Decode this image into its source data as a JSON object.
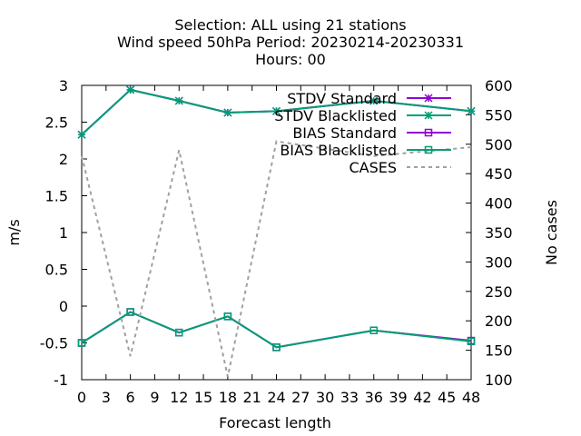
{
  "chart_data": {
    "type": "line",
    "title_lines": [
      "Selection: ALL using    21 stations",
      "Wind speed 50hPa   Period: 20230214-20230331",
      "Hours:  00"
    ],
    "xlabel": "Forecast length",
    "ylabel": "m/s",
    "y2label": "No cases",
    "x_ticks": [
      "0",
      "3",
      "6",
      "9",
      "12",
      "15",
      "18",
      "21",
      "24",
      "27",
      "30",
      "33",
      "36",
      "39",
      "42",
      "45",
      "48"
    ],
    "y_ticks": [
      "-1",
      "-0.5",
      "0",
      "0.5",
      "1",
      "1.5",
      "2",
      "2.5",
      "3"
    ],
    "y2_ticks": [
      "100",
      "150",
      "200",
      "250",
      "300",
      "350",
      "400",
      "450",
      "500",
      "550",
      "600"
    ],
    "xlim": [
      0,
      48
    ],
    "ylim": [
      -1,
      3
    ],
    "y2lim": [
      100,
      600
    ],
    "legend_position": "top-right",
    "grid": false,
    "series": [
      {
        "name": "STDV Standard",
        "axis": "y",
        "color": "#9400d3",
        "marker": "star",
        "x": [
          0,
          6,
          12,
          18,
          24,
          36,
          48
        ],
        "values": [
          2.33,
          2.94,
          2.79,
          2.63,
          2.65,
          2.79,
          2.65
        ]
      },
      {
        "name": "STDV Blacklisted",
        "axis": "y",
        "color": "#009e73",
        "marker": "star",
        "x": [
          0,
          6,
          12,
          18,
          24,
          36,
          48
        ],
        "values": [
          2.33,
          2.94,
          2.79,
          2.63,
          2.65,
          2.79,
          2.65
        ]
      },
      {
        "name": "BIAS Standard",
        "axis": "y",
        "color": "#9400d3",
        "marker": "square",
        "x": [
          0,
          6,
          12,
          18,
          24,
          36,
          48
        ],
        "values": [
          -0.5,
          -0.08,
          -0.36,
          -0.14,
          -0.56,
          -0.33,
          -0.47
        ]
      },
      {
        "name": "BIAS Blacklisted",
        "axis": "y",
        "color": "#009e73",
        "marker": "square",
        "x": [
          0,
          6,
          12,
          18,
          24,
          36,
          48
        ],
        "values": [
          -0.5,
          -0.08,
          -0.36,
          -0.14,
          -0.56,
          -0.33,
          -0.48
        ]
      },
      {
        "name": "CASES",
        "axis": "y2",
        "color": "#a0a0a0",
        "marker": "none",
        "dash": true,
        "x": [
          0,
          6,
          12,
          18,
          24,
          36,
          48
        ],
        "values": [
          480,
          140,
          490,
          105,
          505,
          480,
          495
        ]
      }
    ]
  }
}
